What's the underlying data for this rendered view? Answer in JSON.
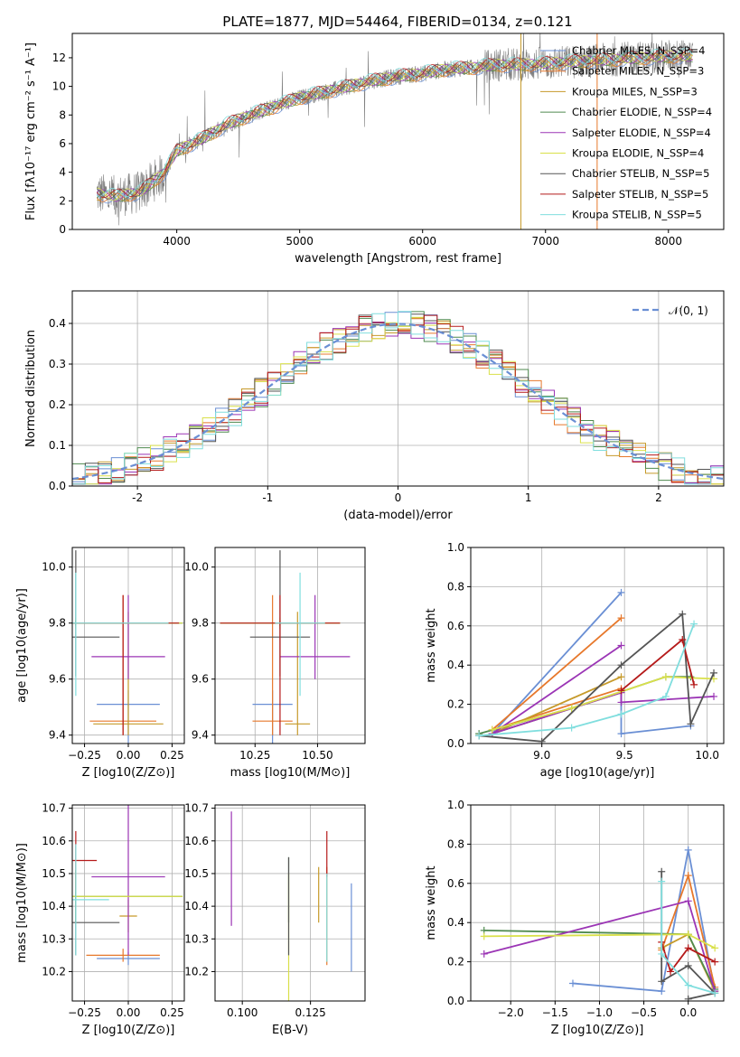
{
  "title": "PLATE=1877, MJD=54464, FIBERID=0134, z=0.121",
  "colors": {
    "series": [
      "#6a8fd4",
      "#e7782b",
      "#c69a2a",
      "#4f8a4f",
      "#9b35b5",
      "#d9e04a",
      "#555555",
      "#b51a1a",
      "#80dede"
    ],
    "data_gray": "#808080",
    "normal_curve": "#6a8fd4",
    "grid": "#b0b0b0"
  },
  "legend_spectrum": [
    "Chabrier MILES, N_SSP=4",
    "Salpeter MILES, N_SSP=3",
    "Kroupa MILES, N_SSP=3",
    "Chabrier ELODIE, N_SSP=4",
    "Salpeter ELODIE, N_SSP=4",
    "Kroupa ELODIE, N_SSP=4",
    "Chabrier STELIB, N_SSP=5",
    "Salpeter STELIB, N_SSP=5",
    "Kroupa STELIB, N_SSP=5"
  ],
  "legend_hist": [
    "𝒩(0, 1)"
  ],
  "chart_data": [
    {
      "id": "spectrum",
      "type": "line",
      "title": "PLATE=1877, MJD=54464, FIBERID=0134, z=0.121",
      "xlabel": "wavelength [Angstrom, rest frame]",
      "ylabel": "Flux [fλ10⁻¹⁷ erg cm⁻² s⁻¹ A⁻¹]",
      "xlim": [
        3150,
        8450
      ],
      "ylim": [
        0,
        13.7
      ],
      "xticks": [
        4000,
        5000,
        6000,
        7000,
        8000
      ],
      "yticks": [
        0,
        2,
        4,
        6,
        8,
        10,
        12
      ],
      "data_trend": {
        "x": [
          3350,
          3500,
          3700,
          3900,
          4000,
          4200,
          4400,
          4600,
          4800,
          5000,
          5200,
          5400,
          5600,
          5800,
          6000,
          6200,
          6400,
          6600,
          6800,
          7000,
          7200,
          7400,
          7600,
          7800,
          8000,
          8200
        ],
        "y": [
          2.5,
          2.3,
          2.6,
          4.0,
          5.5,
          6.3,
          7.3,
          8.0,
          8.6,
          9.2,
          9.6,
          10.0,
          10.4,
          10.7,
          10.9,
          11.2,
          11.3,
          11.5,
          11.5,
          11.6,
          11.7,
          11.8,
          11.9,
          12.0,
          12.1,
          12.1
        ]
      },
      "legend_position": "right"
    },
    {
      "id": "residuals",
      "type": "histogram",
      "xlabel": "(data-model)/error",
      "ylabel": "Normed distribution",
      "xlim": [
        -2.5,
        2.5
      ],
      "ylim": [
        0,
        0.48
      ],
      "xticks": [
        -2,
        -1,
        0,
        1,
        2
      ],
      "yticks": [
        0.0,
        0.1,
        0.2,
        0.3,
        0.4
      ],
      "bin_width": 0.1,
      "reference_curve": "N(0,1)",
      "legend_position": "top-right"
    },
    {
      "id": "Z_vs_age",
      "type": "errorbar",
      "xlabel": "Z [log10(Z/Z⊙)]",
      "ylabel": "age  [log10(age/yr)]",
      "xlim": [
        -0.32,
        0.32
      ],
      "ylim": [
        9.37,
        10.07
      ],
      "xticks": [
        -0.25,
        0.0,
        0.25
      ],
      "xticklabels": [
        "−0.25",
        "0.00",
        "0.25"
      ],
      "yticks": [
        9.4,
        9.6,
        9.8,
        10.0
      ],
      "points": [
        {
          "x": 0.0,
          "y": 9.51,
          "xerr": [
            0.18,
            0.18
          ],
          "yerr": [
            0.25,
            0.05
          ]
        },
        {
          "x": -0.03,
          "y": 9.45,
          "xerr": [
            0.19,
            0.19
          ],
          "yerr": [
            0.05,
            0.45
          ]
        },
        {
          "x": 0.0,
          "y": 9.44,
          "xerr": [
            0.2,
            0.2
          ],
          "yerr": [
            0.04,
            0.4
          ]
        },
        {
          "x": -0.3,
          "y": 9.8,
          "xerr": [
            0.61,
            0.61
          ],
          "yerr": [
            0.01,
            0.01
          ]
        },
        {
          "x": 0.0,
          "y": 9.68,
          "xerr": [
            0.21,
            0.21
          ],
          "yerr": [
            0.08,
            0.22
          ]
        },
        {
          "x": -0.3,
          "y": 9.8,
          "xerr": [
            0.61,
            0.61
          ],
          "yerr": [
            0.02,
            0.02
          ]
        },
        {
          "x": -0.3,
          "y": 9.75,
          "xerr": [
            0.25,
            0.25
          ],
          "yerr": [
            0.14,
            0.31
          ]
        },
        {
          "x": -0.03,
          "y": 9.8,
          "xerr": [
            0.32,
            0.32
          ],
          "yerr": [
            0.4,
            0.1
          ]
        },
        {
          "x": -0.3,
          "y": 9.8,
          "xerr": [
            0.53,
            0.53
          ],
          "yerr": [
            0.26,
            0.18
          ]
        }
      ]
    },
    {
      "id": "mass_vs_age",
      "type": "errorbar",
      "xlabel": "mass [log10(M/M⊙)]",
      "ylabel": "",
      "xlim": [
        10.09,
        10.69
      ],
      "ylim": [
        9.37,
        10.07
      ],
      "xticks": [
        10.25,
        10.5
      ],
      "xticklabels": [
        "10.25",
        "10.50"
      ],
      "yticks": [
        9.4,
        9.6,
        9.8,
        10.0
      ],
      "points": [
        {
          "x": 10.32,
          "y": 9.51,
          "xerr": [
            0.08,
            0.08
          ],
          "yerr": [
            0.25,
            0.05
          ]
        },
        {
          "x": 10.32,
          "y": 9.45,
          "xerr": [
            0.08,
            0.08
          ],
          "yerr": [
            0.05,
            0.45
          ]
        },
        {
          "x": 10.42,
          "y": 9.44,
          "xerr": [
            0.05,
            0.05
          ],
          "yerr": [
            0.04,
            0.4
          ]
        },
        {
          "x": 10.35,
          "y": 9.8,
          "xerr": [
            0.24,
            0.24
          ],
          "yerr": [
            0.01,
            0.01
          ]
        },
        {
          "x": 10.49,
          "y": 9.68,
          "xerr": [
            0.14,
            0.14
          ],
          "yerr": [
            0.08,
            0.22
          ]
        },
        {
          "x": 10.35,
          "y": 9.8,
          "xerr": [
            0.24,
            0.24
          ],
          "yerr": [
            0.02,
            0.02
          ]
        },
        {
          "x": 10.35,
          "y": 9.75,
          "xerr": [
            0.12,
            0.12
          ],
          "yerr": [
            0.14,
            0.31
          ]
        },
        {
          "x": 10.35,
          "y": 9.8,
          "xerr": [
            0.24,
            0.24
          ],
          "yerr": [
            0.4,
            0.1
          ]
        },
        {
          "x": 10.43,
          "y": 9.8,
          "xerr": [
            0.1,
            0.1
          ],
          "yerr": [
            0.26,
            0.18
          ]
        }
      ]
    },
    {
      "id": "weights_vs_age",
      "type": "line",
      "xlabel": "age  [log10(age/yr)]",
      "ylabel": "mass weight",
      "xlim": [
        8.57,
        10.1
      ],
      "ylim": [
        0,
        1
      ],
      "xticks": [
        9.0,
        9.5,
        10.0
      ],
      "yticks": [
        0.0,
        0.2,
        0.4,
        0.6,
        0.8,
        1.0
      ],
      "series": [
        {
          "x": [
            9.48,
            8.7,
            9.48,
            9.48,
            9.9
          ],
          "y": [
            0.77,
            0.05,
            0.26,
            0.05,
            0.09
          ]
        },
        {
          "x": [
            9.48,
            8.7,
            9.48
          ],
          "y": [
            0.64,
            0.07,
            0.28
          ]
        },
        {
          "x": [
            9.48,
            8.7,
            9.48
          ],
          "y": [
            0.34,
            0.05,
            0.26
          ]
        },
        {
          "x": [
            8.62,
            9.18,
            9.75,
            9.9
          ],
          "y": [
            0.05,
            0.18,
            0.34,
            0.34
          ]
        },
        {
          "x": [
            9.48,
            8.7,
            9.48,
            9.48,
            10.04
          ],
          "y": [
            0.5,
            0.05,
            0.26,
            0.21,
            0.24
          ]
        },
        {
          "x": [
            8.7,
            9.18,
            9.75,
            10.04
          ],
          "y": [
            0.07,
            0.18,
            0.34,
            0.33
          ]
        },
        {
          "x": [
            8.62,
            9.0,
            9.48,
            9.85,
            9.9,
            10.04
          ],
          "y": [
            0.04,
            0.01,
            0.4,
            0.66,
            0.1,
            0.36
          ]
        },
        {
          "x": [
            9.48,
            9.85,
            9.92
          ],
          "y": [
            0.27,
            0.53,
            0.3
          ]
        },
        {
          "x": [
            8.62,
            9.18,
            9.48,
            9.75,
            9.92
          ],
          "y": [
            0.04,
            0.08,
            0.15,
            0.24,
            0.61
          ]
        }
      ]
    },
    {
      "id": "Z_vs_mass",
      "type": "errorbar",
      "xlabel": "Z [log10(Z/Z⊙)]",
      "ylabel": "mass [log10(M/M⊙)]",
      "xlim": [
        -0.32,
        0.32
      ],
      "ylim": [
        10.11,
        10.71
      ],
      "xticks": [
        -0.25,
        0.0,
        0.25
      ],
      "xticklabels": [
        "−0.25",
        "0.00",
        "0.25"
      ],
      "yticks": [
        10.2,
        10.3,
        10.4,
        10.5,
        10.6,
        10.7
      ],
      "points": [
        {
          "x": 0.0,
          "y": 10.24,
          "xerr": [
            0.18,
            0.18
          ],
          "yerr": [
            0.02,
            0.02
          ]
        },
        {
          "x": -0.03,
          "y": 10.25,
          "xerr": [
            0.21,
            0.21
          ],
          "yerr": [
            0.02,
            0.02
          ]
        },
        {
          "x": 0.0,
          "y": 10.37,
          "xerr": [
            0.05,
            0.05
          ],
          "yerr": [
            0.05,
            0.05
          ]
        },
        {
          "x": -0.3,
          "y": 10.43,
          "xerr": [
            0.61,
            0.61
          ],
          "yerr": [
            0.08,
            0.08
          ]
        },
        {
          "x": 0.0,
          "y": 10.49,
          "xerr": [
            0.21,
            0.21
          ],
          "yerr": [
            0.24,
            0.24
          ]
        },
        {
          "x": -0.3,
          "y": 10.43,
          "xerr": [
            0.61,
            0.61
          ],
          "yerr": [
            0.08,
            0.08
          ]
        },
        {
          "x": -0.3,
          "y": 10.35,
          "xerr": [
            0.25,
            0.25
          ],
          "yerr": [
            0.1,
            0.1
          ]
        },
        {
          "x": -0.3,
          "y": 10.54,
          "xerr": [
            0.12,
            0.12
          ],
          "yerr": [
            0.09,
            0.09
          ]
        },
        {
          "x": -0.3,
          "y": 10.42,
          "xerr": [
            0.19,
            0.19
          ],
          "yerr": [
            0.17,
            0.17
          ]
        }
      ]
    },
    {
      "id": "ebv_vs_mass",
      "type": "errorbar",
      "xlabel": "E(B-V)",
      "ylabel": "",
      "xlim": [
        0.09,
        0.145
      ],
      "ylim": [
        10.11,
        10.71
      ],
      "xticks": [
        0.1,
        0.125
      ],
      "xticklabels": [
        "0.100",
        "0.125"
      ],
      "yticks": [
        10.2,
        10.3,
        10.4,
        10.5,
        10.6,
        10.7
      ],
      "points": [
        {
          "x": 0.14,
          "y": 10.34,
          "xerr": [
            0.0,
            0.0
          ],
          "yerr": [
            0.14,
            0.13
          ]
        },
        {
          "x": 0.131,
          "y": 10.38,
          "xerr": [
            0.0,
            0.0
          ],
          "yerr": [
            0.16,
            0.14
          ]
        },
        {
          "x": 0.128,
          "y": 10.44,
          "xerr": [
            0.0,
            0.0
          ],
          "yerr": [
            0.09,
            0.08
          ]
        },
        {
          "x": 0.117,
          "y": 10.45,
          "xerr": [
            0.0,
            0.0
          ],
          "yerr": [
            0.1,
            0.1
          ]
        },
        {
          "x": 0.096,
          "y": 10.5,
          "xerr": [
            0.0,
            0.0
          ],
          "yerr": [
            0.16,
            0.19
          ]
        },
        {
          "x": 0.117,
          "y": 10.35,
          "xerr": [
            0.0,
            0.0
          ],
          "yerr": [
            0.25,
            0.15
          ]
        },
        {
          "x": 0.117,
          "y": 10.4,
          "xerr": [
            0.0,
            0.0
          ],
          "yerr": [
            0.15,
            0.15
          ]
        },
        {
          "x": 0.131,
          "y": 10.55,
          "xerr": [
            0.0,
            0.0
          ],
          "yerr": [
            0.06,
            0.08
          ]
        },
        {
          "x": 0.131,
          "y": 10.35,
          "xerr": [
            0.0,
            0.0
          ],
          "yerr": [
            0.12,
            0.15
          ]
        }
      ]
    },
    {
      "id": "weights_vs_Z",
      "type": "line",
      "xlabel": "Z [log10(Z/Z⊙)]",
      "ylabel": "mass weight",
      "xlim": [
        -2.45,
        0.4
      ],
      "ylim": [
        0,
        1
      ],
      "xticks": [
        -2.0,
        -1.5,
        -1.0,
        -0.5,
        0.0
      ],
      "xticklabels": [
        "−2.0",
        "−1.5",
        "−1.0",
        "−0.5",
        "0.0"
      ],
      "yticks": [
        0.0,
        0.2,
        0.4,
        0.6,
        0.8,
        1.0
      ],
      "series": [
        {
          "x": [
            -1.3,
            -0.3,
            0.0,
            0.3
          ],
          "y": [
            0.09,
            0.05,
            0.77,
            0.05
          ]
        },
        {
          "x": [
            -0.3,
            0.0,
            0.3
          ],
          "y": [
            0.26,
            0.64,
            0.07
          ]
        },
        {
          "x": [
            -0.3,
            0.0,
            0.3
          ],
          "y": [
            0.27,
            0.34,
            0.05
          ]
        },
        {
          "x": [
            -2.3,
            0.0,
            0.3
          ],
          "y": [
            0.36,
            0.34,
            0.06
          ]
        },
        {
          "x": [
            -2.3,
            0.0,
            0.3
          ],
          "y": [
            0.24,
            0.51,
            0.05
          ]
        },
        {
          "x": [
            -2.3,
            0.0,
            0.3
          ],
          "y": [
            0.33,
            0.34,
            0.27
          ]
        },
        {
          "x": [
            -0.3,
            -0.3,
            0.0,
            0.3,
            0.0
          ],
          "y": [
            0.66,
            0.1,
            0.18,
            0.04,
            0.01
          ]
        },
        {
          "x": [
            -0.3,
            -0.2,
            0.0,
            0.3
          ],
          "y": [
            0.3,
            0.15,
            0.27,
            0.2
          ]
        },
        {
          "x": [
            -0.3,
            -0.3,
            0.0,
            0.3
          ],
          "y": [
            0.61,
            0.24,
            0.08,
            0.04
          ]
        }
      ]
    }
  ]
}
